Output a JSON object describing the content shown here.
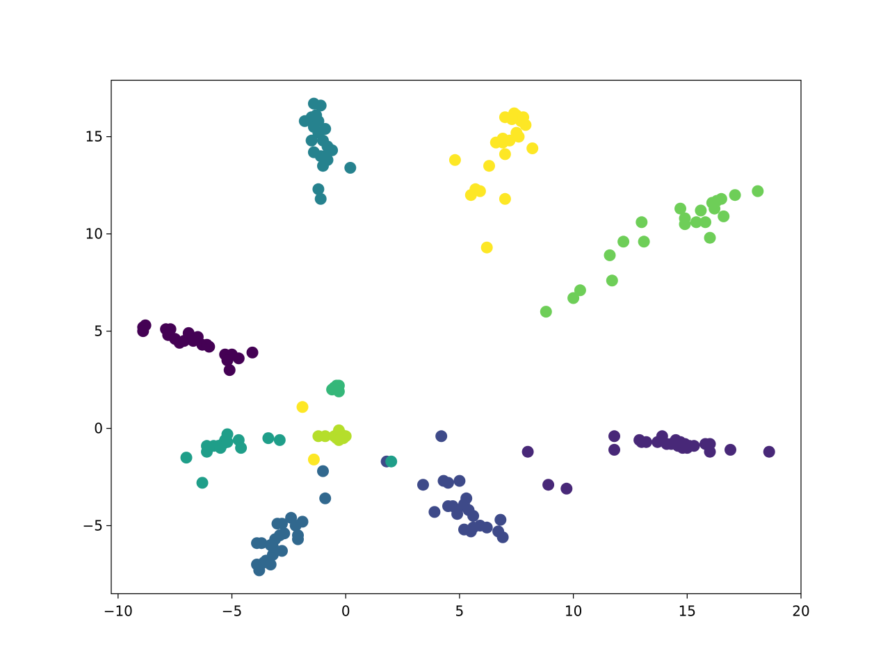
{
  "chart_data": {
    "type": "scatter",
    "title": "",
    "xlabel": "",
    "ylabel": "",
    "xlim": [
      -10.3,
      20
    ],
    "ylim": [
      -8.5,
      17.9
    ],
    "x_ticks": [
      -10,
      -5,
      0,
      5,
      10,
      15,
      20
    ],
    "x_tick_labels": [
      "−10",
      "−5",
      "0",
      "5",
      "10",
      "15",
      "20"
    ],
    "y_ticks": [
      -5,
      0,
      5,
      10,
      15
    ],
    "y_tick_labels": [
      "−5",
      "0",
      "5",
      "10",
      "15"
    ],
    "grid": false,
    "legend": "none",
    "colormap": "viridis",
    "series": [
      {
        "color": "#440154",
        "points": [
          [
            -8.9,
            5.2
          ],
          [
            -8.8,
            5.3
          ],
          [
            -8.9,
            5.0
          ],
          [
            -7.9,
            5.1
          ],
          [
            -7.7,
            5.1
          ],
          [
            -7.8,
            4.8
          ],
          [
            -7.5,
            4.6
          ],
          [
            -7.3,
            4.4
          ],
          [
            -7.1,
            4.5
          ],
          [
            -6.9,
            4.9
          ],
          [
            -6.7,
            4.6
          ],
          [
            -6.5,
            4.7
          ],
          [
            -6.3,
            4.3
          ],
          [
            -6.0,
            4.2
          ],
          [
            -6.1,
            4.3
          ],
          [
            -5.3,
            3.8
          ],
          [
            -5.0,
            3.8
          ],
          [
            -5.2,
            3.5
          ],
          [
            -4.7,
            3.6
          ],
          [
            -4.1,
            3.9
          ],
          [
            -5.1,
            3.0
          ],
          [
            -6.7,
            4.5
          ]
        ]
      },
      {
        "color": "#482878",
        "points": [
          [
            11.8,
            -0.4
          ],
          [
            11.8,
            -1.1
          ],
          [
            12.9,
            -0.6
          ],
          [
            13.0,
            -0.7
          ],
          [
            13.2,
            -0.7
          ],
          [
            13.7,
            -0.7
          ],
          [
            13.9,
            -0.4
          ],
          [
            14.1,
            -0.8
          ],
          [
            14.3,
            -0.8
          ],
          [
            14.5,
            -0.6
          ],
          [
            14.6,
            -0.9
          ],
          [
            14.8,
            -1.0
          ],
          [
            14.9,
            -0.8
          ],
          [
            15.0,
            -1.0
          ],
          [
            15.1,
            -0.9
          ],
          [
            15.3,
            -0.9
          ],
          [
            15.8,
            -0.8
          ],
          [
            16.0,
            -0.8
          ],
          [
            16.0,
            -1.2
          ],
          [
            16.9,
            -1.1
          ],
          [
            18.6,
            -1.2
          ],
          [
            8.0,
            -1.2
          ],
          [
            8.9,
            -2.9
          ],
          [
            9.7,
            -3.1
          ],
          [
            14.7,
            -0.7
          ]
        ]
      },
      {
        "color": "#3e4a89",
        "points": [
          [
            3.4,
            -2.9
          ],
          [
            3.9,
            -4.3
          ],
          [
            4.3,
            -2.7
          ],
          [
            4.5,
            -2.8
          ],
          [
            4.5,
            -4.0
          ],
          [
            4.7,
            -4.0
          ],
          [
            4.9,
            -4.2
          ],
          [
            4.9,
            -4.4
          ],
          [
            5.0,
            -2.7
          ],
          [
            5.2,
            -3.9
          ],
          [
            5.3,
            -3.6
          ],
          [
            5.4,
            -4.2
          ],
          [
            5.6,
            -4.5
          ],
          [
            5.2,
            -5.2
          ],
          [
            5.5,
            -5.3
          ],
          [
            5.6,
            -5.1
          ],
          [
            5.9,
            -5.0
          ],
          [
            6.2,
            -5.1
          ],
          [
            6.8,
            -4.7
          ],
          [
            6.9,
            -5.6
          ],
          [
            6.7,
            -5.3
          ],
          [
            4.2,
            -0.4
          ],
          [
            1.8,
            -1.7
          ]
        ]
      },
      {
        "color": "#31688e",
        "points": [
          [
            -3.9,
            -5.9
          ],
          [
            -3.7,
            -5.9
          ],
          [
            -3.9,
            -7.0
          ],
          [
            -3.8,
            -7.3
          ],
          [
            -3.6,
            -6.9
          ],
          [
            -3.5,
            -6.8
          ],
          [
            -3.3,
            -7.0
          ],
          [
            -3.2,
            -6.5
          ],
          [
            -3.2,
            -6.1
          ],
          [
            -3.1,
            -5.7
          ],
          [
            -3.0,
            -4.9
          ],
          [
            -2.8,
            -4.9
          ],
          [
            -2.9,
            -5.5
          ],
          [
            -2.7,
            -5.4
          ],
          [
            -2.8,
            -6.3
          ],
          [
            -2.4,
            -4.6
          ],
          [
            -2.2,
            -5.0
          ],
          [
            -2.1,
            -5.5
          ],
          [
            -1.9,
            -4.8
          ],
          [
            -2.1,
            -5.7
          ],
          [
            -1.0,
            -2.2
          ],
          [
            -0.9,
            -3.6
          ],
          [
            -3.3,
            -6.0
          ]
        ]
      },
      {
        "color": "#26828e",
        "points": [
          [
            -1.4,
            16.7
          ],
          [
            -1.1,
            16.6
          ],
          [
            -1.3,
            16.1
          ],
          [
            -1.5,
            16.0
          ],
          [
            -1.2,
            15.8
          ],
          [
            -1.8,
            15.8
          ],
          [
            -1.4,
            15.5
          ],
          [
            -0.9,
            15.4
          ],
          [
            -1.2,
            15.2
          ],
          [
            -1.5,
            14.8
          ],
          [
            -1.0,
            14.8
          ],
          [
            -0.8,
            14.5
          ],
          [
            -1.4,
            14.2
          ],
          [
            -1.1,
            14.0
          ],
          [
            -0.8,
            13.8
          ],
          [
            -0.6,
            14.3
          ],
          [
            -0.9,
            14.0
          ],
          [
            -1.0,
            13.5
          ],
          [
            0.2,
            13.4
          ],
          [
            -1.2,
            12.3
          ],
          [
            -1.1,
            11.8
          ]
        ]
      },
      {
        "color": "#1f9e89",
        "points": [
          [
            -7.0,
            -1.5
          ],
          [
            -6.1,
            -0.9
          ],
          [
            -6.1,
            -1.2
          ],
          [
            -5.8,
            -0.9
          ],
          [
            -5.6,
            -0.9
          ],
          [
            -5.5,
            -1.0
          ],
          [
            -5.4,
            -0.8
          ],
          [
            -5.3,
            -0.6
          ],
          [
            -5.2,
            -0.7
          ],
          [
            -5.2,
            -0.3
          ],
          [
            -4.7,
            -0.6
          ],
          [
            -4.6,
            -1.0
          ],
          [
            -3.4,
            -0.5
          ],
          [
            -2.9,
            -0.6
          ],
          [
            -6.3,
            -2.8
          ],
          [
            2.0,
            -1.7
          ]
        ]
      },
      {
        "color": "#35b779",
        "points": [
          [
            -0.6,
            2.0
          ],
          [
            -0.5,
            2.1
          ],
          [
            -0.4,
            2.2
          ],
          [
            -0.3,
            2.2
          ],
          [
            -0.3,
            1.9
          ]
        ]
      },
      {
        "color": "#6ece58",
        "points": [
          [
            8.8,
            6.0
          ],
          [
            10.0,
            6.7
          ],
          [
            10.3,
            7.1
          ],
          [
            11.6,
            8.9
          ],
          [
            11.7,
            7.6
          ],
          [
            12.2,
            9.6
          ],
          [
            13.0,
            10.6
          ],
          [
            13.1,
            9.6
          ],
          [
            14.7,
            11.3
          ],
          [
            14.9,
            10.8
          ],
          [
            14.9,
            10.5
          ],
          [
            15.4,
            10.6
          ],
          [
            15.6,
            11.2
          ],
          [
            15.8,
            10.6
          ],
          [
            16.0,
            9.8
          ],
          [
            16.1,
            11.6
          ],
          [
            16.2,
            11.3
          ],
          [
            16.3,
            11.7
          ],
          [
            16.5,
            11.8
          ],
          [
            16.6,
            10.9
          ],
          [
            17.1,
            12.0
          ],
          [
            18.1,
            12.2
          ]
        ]
      },
      {
        "color": "#b5de2b",
        "points": [
          [
            -1.2,
            -0.4
          ],
          [
            -0.9,
            -0.4
          ],
          [
            -0.5,
            -0.4
          ],
          [
            -0.4,
            -0.5
          ],
          [
            -0.3,
            -0.1
          ],
          [
            -0.2,
            -0.4
          ],
          [
            -0.1,
            -0.5
          ],
          [
            -0.2,
            -0.3
          ],
          [
            0.0,
            -0.4
          ],
          [
            -0.3,
            -0.6
          ]
        ]
      },
      {
        "color": "#fde725",
        "points": [
          [
            4.8,
            13.8
          ],
          [
            5.5,
            12.0
          ],
          [
            5.7,
            12.3
          ],
          [
            5.9,
            12.2
          ],
          [
            6.3,
            13.5
          ],
          [
            6.2,
            9.3
          ],
          [
            6.6,
            14.7
          ],
          [
            6.9,
            14.7
          ],
          [
            6.9,
            14.9
          ],
          [
            7.0,
            14.1
          ],
          [
            7.2,
            14.8
          ],
          [
            7.0,
            16.0
          ],
          [
            7.4,
            16.2
          ],
          [
            7.5,
            16.1
          ],
          [
            7.7,
            15.8
          ],
          [
            7.8,
            16.0
          ],
          [
            7.9,
            15.6
          ],
          [
            7.5,
            15.2
          ],
          [
            7.6,
            15.0
          ],
          [
            8.2,
            14.4
          ],
          [
            7.0,
            11.8
          ],
          [
            -1.9,
            1.1
          ],
          [
            -1.4,
            -1.6
          ],
          [
            7.3,
            15.9
          ]
        ]
      }
    ]
  }
}
